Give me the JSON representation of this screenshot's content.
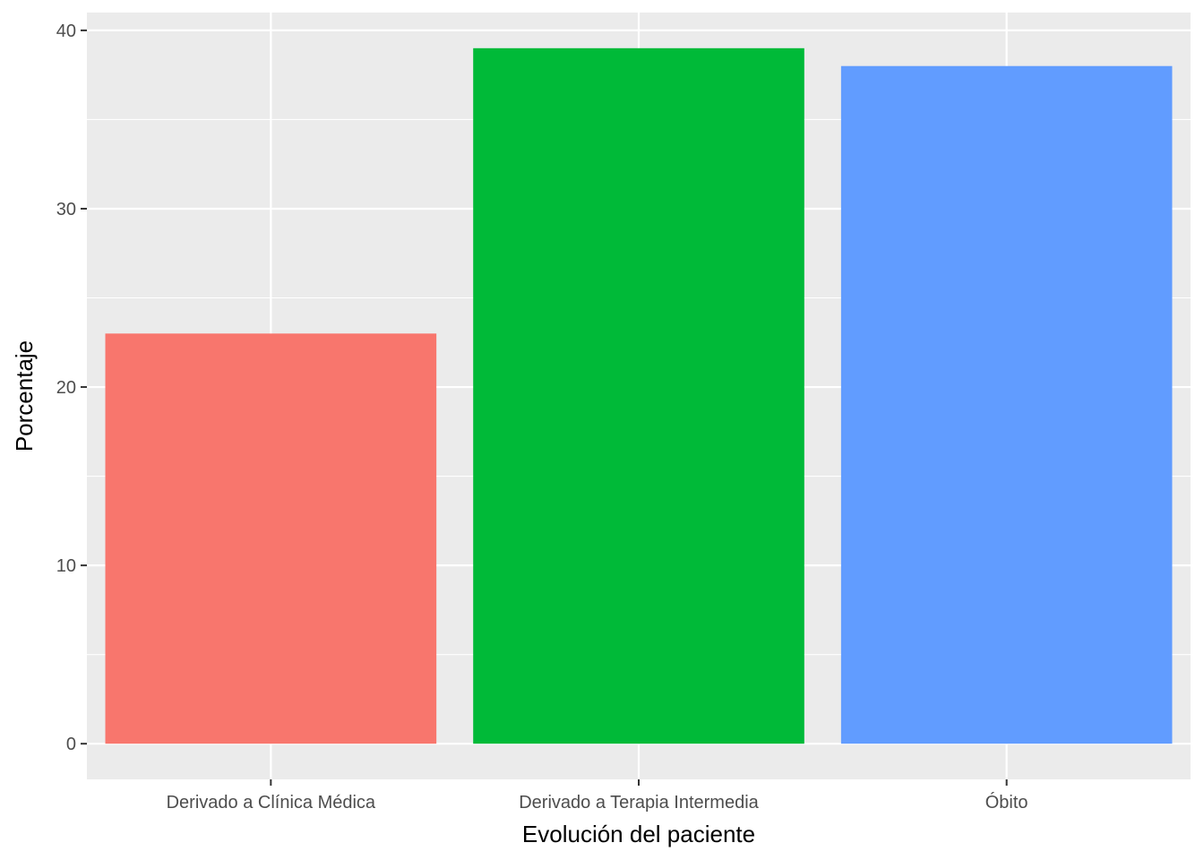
{
  "chart_data": {
    "type": "bar",
    "title": "",
    "xlabel": "Evolución del paciente",
    "ylabel": "Porcentaje",
    "categories": [
      "Derivado a Clínica Médica",
      "Derivado a Terapia Intermedia",
      "Óbito"
    ],
    "values": [
      23,
      39,
      38
    ],
    "colors": [
      "#F8766D",
      "#00BA38",
      "#619CFF"
    ],
    "ylim": [
      -2,
      41
    ],
    "yticks": [
      0,
      10,
      20,
      30,
      40
    ],
    "grid": true,
    "legend": "none",
    "panel_background": "#EBEBEB",
    "gridline_color": "#FFFFFF"
  }
}
